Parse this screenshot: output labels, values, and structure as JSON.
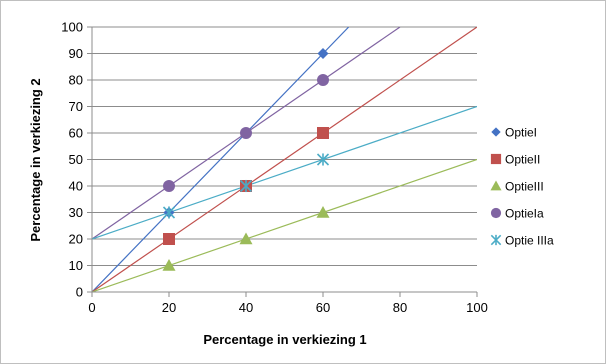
{
  "chart_data": {
    "type": "scatter",
    "xlabel": "Percentage in verkiezing 1",
    "ylabel": "Percentage in verkiezing 2",
    "xlim": [
      0,
      100
    ],
    "ylim": [
      0,
      100
    ],
    "xticks": [
      0,
      20,
      40,
      60,
      80,
      100
    ],
    "yticks": [
      0,
      10,
      20,
      30,
      40,
      50,
      60,
      70,
      80,
      90,
      100
    ],
    "grid": "horizontal",
    "legend_position": "right",
    "series": [
      {
        "name": "OptieI",
        "marker": "diamond",
        "color": "#4472C4",
        "x": [
          20,
          40,
          60
        ],
        "y": [
          30,
          60,
          90
        ],
        "line": {
          "x": [
            0,
            66.67
          ],
          "y": [
            0,
            100
          ]
        }
      },
      {
        "name": "OptieII",
        "marker": "square",
        "color": "#C0504D",
        "x": [
          20,
          40,
          60
        ],
        "y": [
          20,
          40,
          60
        ],
        "line": {
          "x": [
            0,
            100
          ],
          "y": [
            0,
            100
          ]
        }
      },
      {
        "name": "OptieIII",
        "marker": "triangle",
        "color": "#9BBB59",
        "x": [
          20,
          40,
          60
        ],
        "y": [
          10,
          20,
          30
        ],
        "line": {
          "x": [
            0,
            100
          ],
          "y": [
            0,
            50
          ]
        }
      },
      {
        "name": "OptieIa",
        "marker": "circle",
        "color": "#8064A2",
        "x": [
          20,
          40,
          60
        ],
        "y": [
          40,
          60,
          80
        ],
        "line": {
          "x": [
            0,
            80
          ],
          "y": [
            20,
            100
          ]
        }
      },
      {
        "name": "Optie IIIa",
        "marker": "asterisk",
        "color": "#4BACC6",
        "x": [
          20,
          40,
          60
        ],
        "y": [
          30,
          40,
          50
        ],
        "line": {
          "x": [
            0,
            100
          ],
          "y": [
            20,
            70
          ]
        }
      }
    ]
  }
}
